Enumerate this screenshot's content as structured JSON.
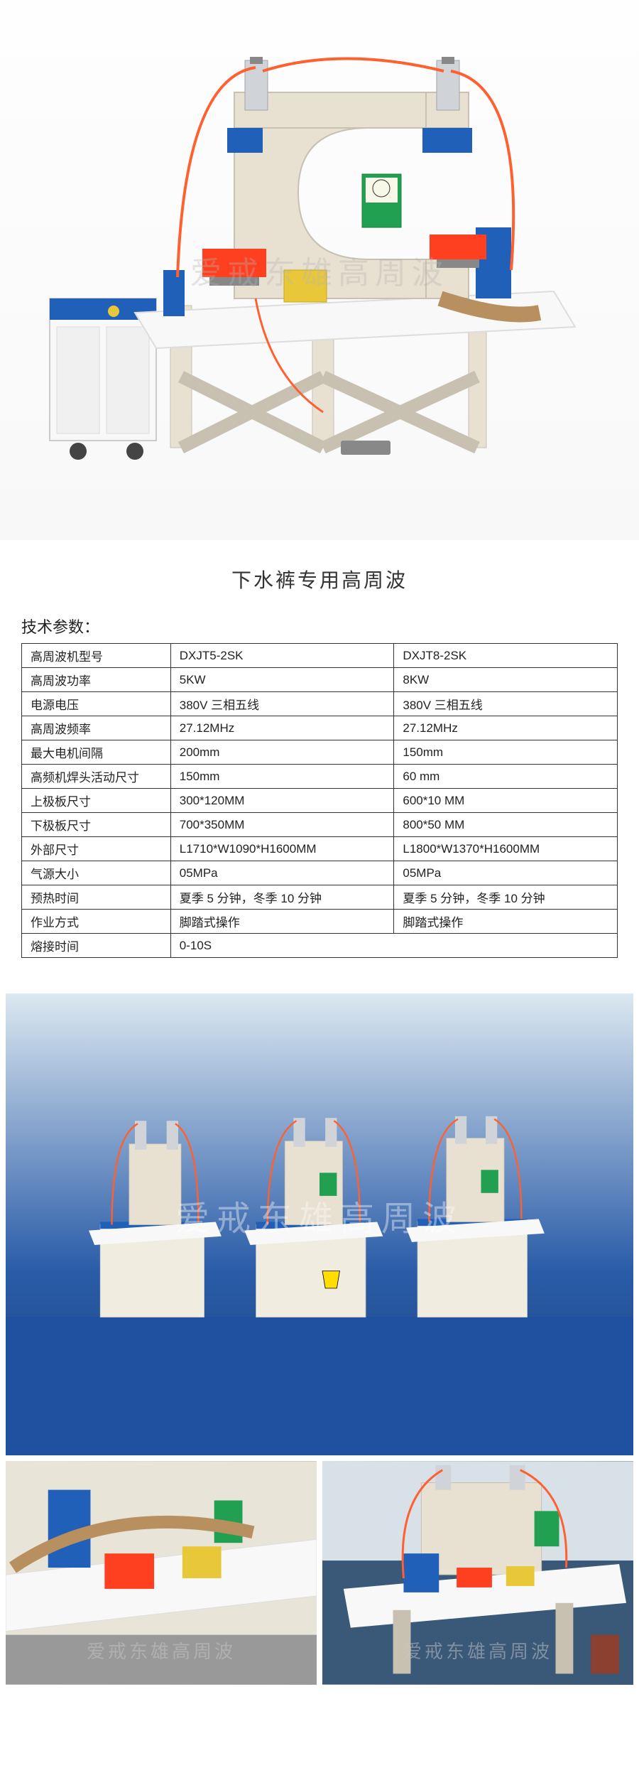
{
  "product": {
    "title": "下水裤专用高周波",
    "watermark": "爱戒东雄高周波"
  },
  "spec": {
    "header": "技术参数：",
    "columns": [
      "",
      ""
    ],
    "rows": [
      {
        "label": "高周波机型号",
        "v1": "DXJT5-2SK",
        "v2": "DXJT8-2SK"
      },
      {
        "label": "高周波功率",
        "v1": "5KW",
        "v2": "8KW"
      },
      {
        "label": "电源电压",
        "v1": "380V 三相五线",
        "v2": "380V 三相五线"
      },
      {
        "label": "高周波频率",
        "v1": "27.12MHz",
        "v2": "27.12MHz"
      },
      {
        "label": "最大电机间隔",
        "v1": "200mm",
        "v2": "150mm"
      },
      {
        "label": "高频机焊头活动尺寸",
        "v1": "150mm",
        "v2": "60 mm"
      },
      {
        "label": "上极板尺寸",
        "v1": "300*120MM",
        "v2": "600*10  MM"
      },
      {
        "label": "下极板尺寸",
        "v1": "700*350MM",
        "v2": "800*50 MM"
      },
      {
        "label": "外部尺寸",
        "v1": "L1710*W1090*H1600MM",
        "v2": "L1800*W1370*H1600MM"
      },
      {
        "label": "气源大小",
        "v1": "05MPa",
        "v2": "05MPa"
      },
      {
        "label": "预热时间",
        "v1": "夏季 5 分钟，冬季 10 分钟",
        "v2": "夏季 5 分钟，冬季 10 分钟"
      },
      {
        "label": "作业方式",
        "v1": "脚踏式操作",
        "v2": "脚踏式操作"
      },
      {
        "label": "熔接时间",
        "v1": "0-10S",
        "v2": "",
        "span": true
      }
    ]
  },
  "colors": {
    "machine_cream": "#e8e0d0",
    "machine_blue": "#2060b8",
    "machine_white": "#f8f8f8",
    "tube_orange": "#ff6030",
    "accent_yellow": "#e8c838",
    "accent_green": "#20a050",
    "floor_blue": "#1e4a8c",
    "text": "#222222",
    "border": "#333333"
  }
}
